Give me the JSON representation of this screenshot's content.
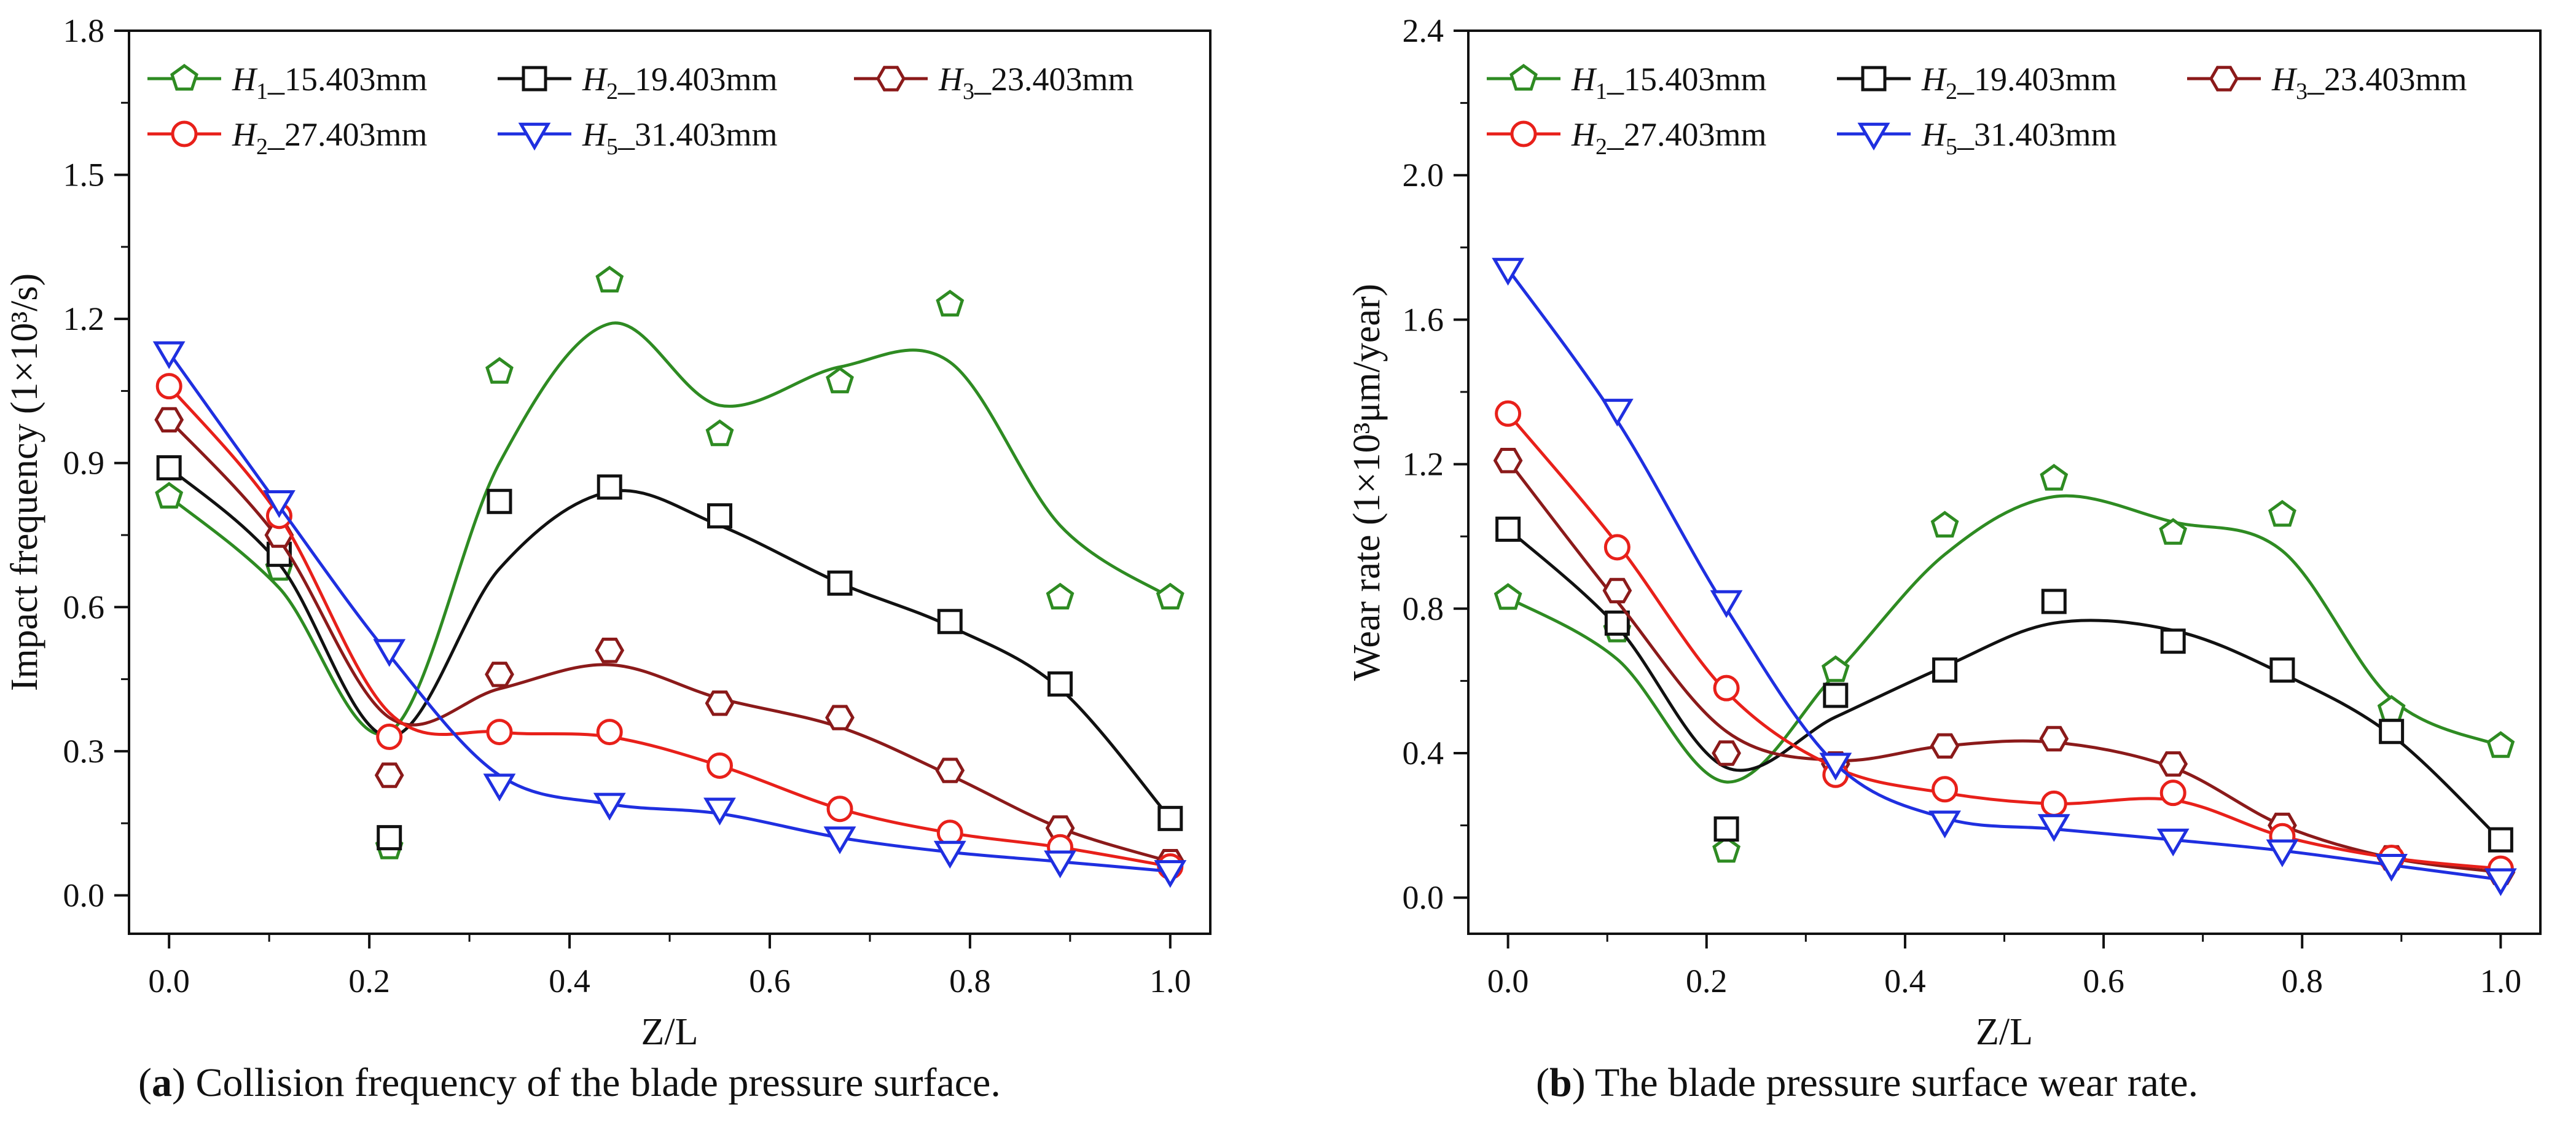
{
  "chart_data": [
    {
      "type": "line",
      "panel": "a",
      "caption_letter": "a",
      "caption": "Collision frequency of the blade pressure surface.",
      "xlabel": "Z/L",
      "ylabel": "Impact frequency (1×10³/s)",
      "xlim": [
        -0.04,
        1.04
      ],
      "ylim": [
        -0.08,
        1.8
      ],
      "xticks": [
        0.0,
        0.2,
        0.4,
        0.6,
        0.8,
        1.0
      ],
      "xtick_labels": [
        "0.0",
        "0.2",
        "0.4",
        "0.6",
        "0.8",
        "1.0"
      ],
      "yticks": [
        0.0,
        0.3,
        0.6,
        0.9,
        1.2,
        1.5,
        1.8
      ],
      "ytick_labels": [
        "0.0",
        "0.3",
        "0.6",
        "0.9",
        "1.2",
        "1.5",
        "1.8"
      ],
      "x": [
        0,
        0.11,
        0.22,
        0.33,
        0.44,
        0.55,
        0.67,
        0.78,
        0.89,
        1.0
      ],
      "legend_position": "top",
      "series": [
        {
          "name": "H1_15.403mm",
          "label_main": "H",
          "label_sub": "1",
          "label_rest": "_15.403mm",
          "color": "#2e8b22",
          "marker": "pentagon",
          "values": [
            0.83,
            0.68,
            0.1,
            1.09,
            1.28,
            0.96,
            1.07,
            1.23,
            0.62,
            0.62
          ],
          "curve": [
            0.83,
            0.64,
            0.34,
            0.9,
            1.19,
            1.02,
            1.1,
            1.11,
            0.77,
            0.62
          ]
        },
        {
          "name": "H2_19.403mm",
          "label_main": "H",
          "label_sub": "2",
          "label_rest": "_19.403mm",
          "color": "#111111",
          "marker": "square",
          "values": [
            0.89,
            0.71,
            0.12,
            0.82,
            0.85,
            0.79,
            0.65,
            0.57,
            0.44,
            0.16
          ],
          "curve": [
            0.89,
            0.69,
            0.33,
            0.68,
            0.84,
            0.77,
            0.65,
            0.56,
            0.43,
            0.16
          ]
        },
        {
          "name": "H3_23.403mm",
          "label_main": "H",
          "label_sub": "3",
          "label_rest": "_23.403mm",
          "color": "#8b1a1a",
          "marker": "hexagon",
          "values": [
            0.99,
            0.75,
            0.25,
            0.46,
            0.51,
            0.4,
            0.37,
            0.26,
            0.14,
            0.07
          ],
          "curve": [
            0.99,
            0.74,
            0.37,
            0.43,
            0.48,
            0.41,
            0.35,
            0.25,
            0.14,
            0.07
          ]
        },
        {
          "name": "H2_27.403mm",
          "label_main": "H",
          "label_sub": "2",
          "label_rest": "_27.403mm",
          "color": "#e8201a",
          "marker": "circle",
          "values": [
            1.06,
            0.79,
            0.33,
            0.34,
            0.34,
            0.27,
            0.18,
            0.13,
            0.1,
            0.06
          ],
          "curve": [
            1.06,
            0.79,
            0.38,
            0.34,
            0.33,
            0.27,
            0.18,
            0.13,
            0.1,
            0.06
          ]
        },
        {
          "name": "H5_31.403mm",
          "label_main": "H",
          "label_sub": "5",
          "label_rest": "_31.403mm",
          "color": "#1f2fe0",
          "marker": "triangle-down",
          "values": [
            1.13,
            0.82,
            0.51,
            0.23,
            0.19,
            0.18,
            0.12,
            0.09,
            0.07,
            0.05
          ],
          "curve": [
            1.13,
            0.81,
            0.5,
            0.25,
            0.19,
            0.17,
            0.12,
            0.09,
            0.07,
            0.05
          ]
        }
      ]
    },
    {
      "type": "line",
      "panel": "b",
      "caption_letter": "b",
      "caption": "The blade pressure surface wear rate.",
      "xlabel": "Z/L",
      "ylabel": "Wear rate (1×10³μm/year)",
      "xlim": [
        -0.04,
        1.04
      ],
      "ylim": [
        -0.1,
        2.4
      ],
      "xticks": [
        0.0,
        0.2,
        0.4,
        0.6,
        0.8,
        1.0
      ],
      "xtick_labels": [
        "0.0",
        "0.2",
        "0.4",
        "0.6",
        "0.8",
        "1.0"
      ],
      "yticks": [
        0.0,
        0.4,
        0.8,
        1.2,
        1.6,
        2.0,
        2.4
      ],
      "ytick_labels": [
        "0.0",
        "0.4",
        "0.8",
        "1.2",
        "1.6",
        "2.0",
        "2.4"
      ],
      "x": [
        0,
        0.11,
        0.22,
        0.33,
        0.44,
        0.55,
        0.67,
        0.78,
        0.89,
        1.0
      ],
      "legend_position": "top",
      "series": [
        {
          "name": "H1_15.403mm",
          "label_main": "H",
          "label_sub": "1",
          "label_rest": "_15.403mm",
          "color": "#2e8b22",
          "marker": "pentagon",
          "values": [
            0.83,
            0.74,
            0.13,
            0.63,
            1.03,
            1.16,
            1.01,
            1.06,
            0.52,
            0.42
          ],
          "curve": [
            0.83,
            0.66,
            0.32,
            0.62,
            0.95,
            1.11,
            1.04,
            0.96,
            0.55,
            0.42
          ]
        },
        {
          "name": "H2_19.403mm",
          "label_main": "H",
          "label_sub": "2",
          "label_rest": "_19.403mm",
          "color": "#111111",
          "marker": "square",
          "values": [
            1.02,
            0.76,
            0.19,
            0.56,
            0.63,
            0.82,
            0.71,
            0.63,
            0.46,
            0.16
          ],
          "curve": [
            1.02,
            0.75,
            0.36,
            0.5,
            0.64,
            0.76,
            0.74,
            0.62,
            0.45,
            0.16
          ]
        },
        {
          "name": "H3_23.403mm",
          "label_main": "H",
          "label_sub": "3",
          "label_rest": "_23.403mm",
          "color": "#8b1a1a",
          "marker": "hexagon",
          "values": [
            1.21,
            0.85,
            0.4,
            0.37,
            0.42,
            0.44,
            0.37,
            0.2,
            0.11,
            0.07
          ],
          "curve": [
            1.21,
            0.82,
            0.46,
            0.38,
            0.42,
            0.43,
            0.36,
            0.2,
            0.11,
            0.07
          ]
        },
        {
          "name": "H2_27.403mm",
          "label_main": "H",
          "label_sub": "2",
          "label_rest": "_27.403mm",
          "color": "#e8201a",
          "marker": "circle",
          "values": [
            1.34,
            0.97,
            0.58,
            0.34,
            0.3,
            0.26,
            0.29,
            0.17,
            0.11,
            0.08
          ],
          "curve": [
            1.34,
            0.98,
            0.57,
            0.36,
            0.29,
            0.26,
            0.27,
            0.17,
            0.11,
            0.08
          ]
        },
        {
          "name": "H5_31.403mm",
          "label_main": "H",
          "label_sub": "5",
          "label_rest": "_31.403mm",
          "color": "#1f2fe0",
          "marker": "triangle-down",
          "values": [
            1.74,
            1.35,
            0.82,
            0.37,
            0.21,
            0.2,
            0.16,
            0.13,
            0.09,
            0.05
          ],
          "curve": [
            1.74,
            1.32,
            0.8,
            0.37,
            0.22,
            0.19,
            0.16,
            0.13,
            0.09,
            0.05
          ]
        }
      ]
    }
  ]
}
